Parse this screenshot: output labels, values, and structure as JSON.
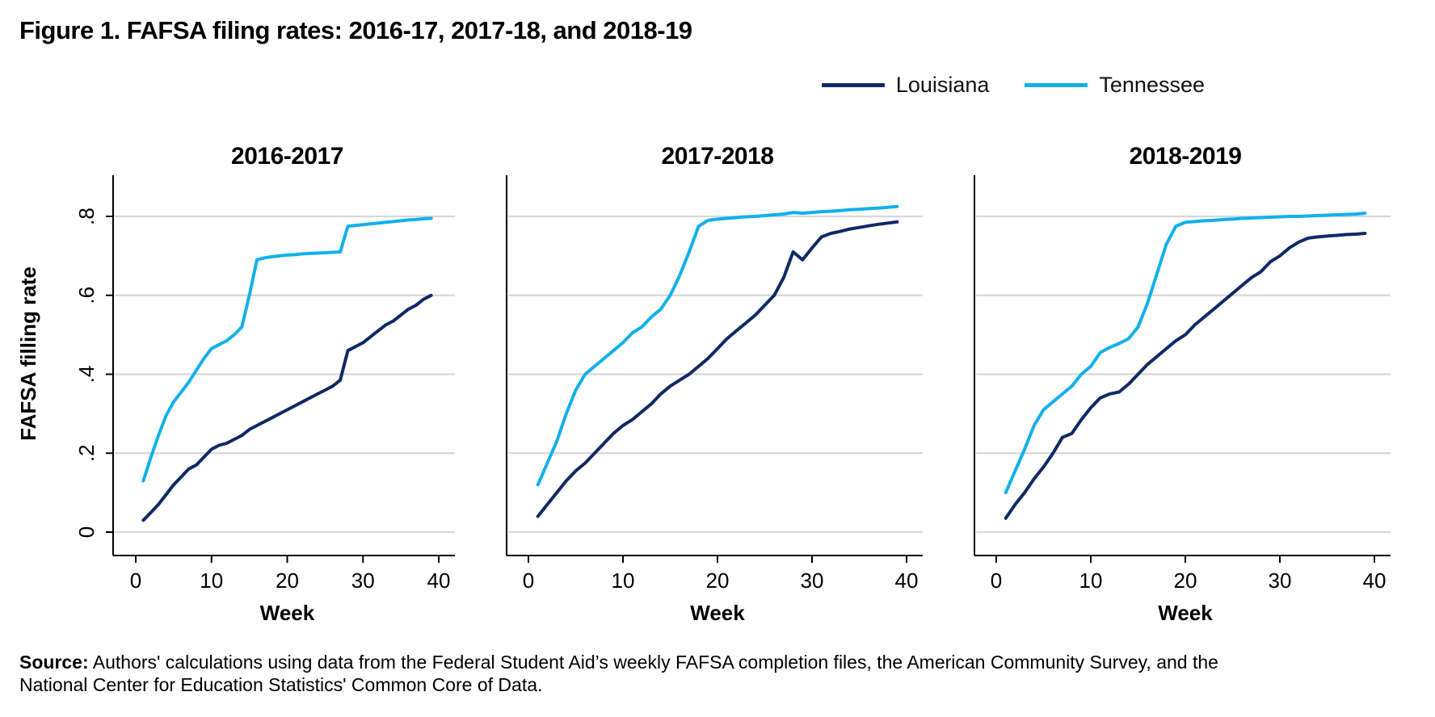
{
  "figure": {
    "title": "Figure 1. FAFSA filing rates: 2016-17, 2017-18, and 2018-19"
  },
  "legend": {
    "items": [
      {
        "label": "Louisiana",
        "color": "#0e2a63"
      },
      {
        "label": "Tennessee",
        "color": "#12b0e9"
      }
    ]
  },
  "colors": {
    "louisiana": "#0e2a63",
    "tennessee": "#12b0e9",
    "gridline": "#d7d7d7",
    "axis": "#000000"
  },
  "source": {
    "label": "Source:",
    "text": " Authors' calculations using data from the Federal Student Aid’s weekly FAFSA completion files, the American Community Survey, and the National Center for Education Statistics' Common Core of Data."
  },
  "chart_data": [
    {
      "type": "line",
      "title": "2016-2017",
      "xlabel": "Week",
      "ylabel": "FAFSA filling rate",
      "xticks": [
        0,
        10,
        20,
        30,
        40
      ],
      "yticks": [
        0,
        0.2,
        0.4,
        0.6,
        0.8
      ],
      "ytick_labels": [
        "0",
        ".2",
        ".4",
        ".6",
        ".8"
      ],
      "xlim": [
        -3,
        42
      ],
      "ylim": [
        0,
        0.9
      ],
      "grid": "horizontal",
      "x": [
        1,
        2,
        3,
        4,
        5,
        6,
        7,
        8,
        9,
        10,
        11,
        12,
        13,
        14,
        15,
        16,
        17,
        18,
        19,
        20,
        21,
        22,
        23,
        24,
        25,
        26,
        27,
        28,
        29,
        30,
        31,
        32,
        33,
        34,
        35,
        36,
        37,
        38,
        39
      ],
      "series": [
        {
          "name": "Louisiana",
          "values": [
            0.03,
            0.05,
            0.07,
            0.095,
            0.12,
            0.14,
            0.16,
            0.17,
            0.19,
            0.21,
            0.22,
            0.225,
            0.235,
            0.245,
            0.26,
            0.27,
            0.28,
            0.29,
            0.3,
            0.31,
            0.32,
            0.33,
            0.34,
            0.35,
            0.36,
            0.37,
            0.385,
            0.46,
            0.47,
            0.48,
            0.495,
            0.51,
            0.525,
            0.535,
            0.55,
            0.565,
            0.575,
            0.59,
            0.6
          ]
        },
        {
          "name": "Tennessee",
          "values": [
            0.13,
            0.19,
            0.245,
            0.295,
            0.33,
            0.355,
            0.38,
            0.41,
            0.44,
            0.465,
            0.475,
            0.485,
            0.5,
            0.52,
            0.6,
            0.69,
            0.695,
            0.698,
            0.7,
            0.702,
            0.703,
            0.705,
            0.706,
            0.707,
            0.708,
            0.709,
            0.71,
            0.775,
            0.777,
            0.779,
            0.781,
            0.783,
            0.785,
            0.787,
            0.789,
            0.791,
            0.792,
            0.794,
            0.795
          ]
        }
      ]
    },
    {
      "type": "line",
      "title": "2017-2018",
      "xlabel": "Week",
      "ylabel": "FAFSA filling rate",
      "xticks": [
        0,
        10,
        20,
        30,
        40
      ],
      "yticks": [
        0,
        0.2,
        0.4,
        0.6,
        0.8
      ],
      "ytick_labels": [
        "0",
        ".2",
        ".4",
        ".6",
        ".8"
      ],
      "xlim": [
        -3,
        42
      ],
      "ylim": [
        0,
        0.9
      ],
      "grid": "horizontal",
      "x": [
        1,
        2,
        3,
        4,
        5,
        6,
        7,
        8,
        9,
        10,
        11,
        12,
        13,
        14,
        15,
        16,
        17,
        18,
        19,
        20,
        21,
        22,
        23,
        24,
        25,
        26,
        27,
        28,
        29,
        30,
        31,
        32,
        33,
        34,
        35,
        36,
        37,
        38,
        39
      ],
      "series": [
        {
          "name": "Louisiana",
          "values": [
            0.04,
            0.07,
            0.1,
            0.13,
            0.155,
            0.175,
            0.2,
            0.225,
            0.25,
            0.27,
            0.285,
            0.305,
            0.325,
            0.35,
            0.37,
            0.385,
            0.4,
            0.42,
            0.44,
            0.465,
            0.49,
            0.51,
            0.53,
            0.55,
            0.575,
            0.6,
            0.645,
            0.71,
            0.69,
            0.72,
            0.748,
            0.757,
            0.762,
            0.768,
            0.772,
            0.776,
            0.78,
            0.783,
            0.786
          ]
        },
        {
          "name": "Tennessee",
          "values": [
            0.12,
            0.175,
            0.23,
            0.3,
            0.36,
            0.4,
            0.42,
            0.44,
            0.46,
            0.48,
            0.505,
            0.52,
            0.545,
            0.565,
            0.6,
            0.65,
            0.71,
            0.775,
            0.79,
            0.793,
            0.795,
            0.797,
            0.799,
            0.8,
            0.802,
            0.804,
            0.806,
            0.81,
            0.808,
            0.81,
            0.812,
            0.813,
            0.815,
            0.817,
            0.818,
            0.82,
            0.821,
            0.823,
            0.825
          ]
        }
      ]
    },
    {
      "type": "line",
      "title": "2018-2019",
      "xlabel": "Week",
      "ylabel": "FAFSA filling rate",
      "xticks": [
        0,
        10,
        20,
        30,
        40
      ],
      "yticks": [
        0,
        0.2,
        0.4,
        0.6,
        0.8
      ],
      "ytick_labels": [
        "0",
        ".2",
        ".4",
        ".6",
        ".8"
      ],
      "xlim": [
        -3,
        42
      ],
      "ylim": [
        0,
        0.9
      ],
      "grid": "horizontal",
      "x": [
        1,
        2,
        3,
        4,
        5,
        6,
        7,
        8,
        9,
        10,
        11,
        12,
        13,
        14,
        15,
        16,
        17,
        18,
        19,
        20,
        21,
        22,
        23,
        24,
        25,
        26,
        27,
        28,
        29,
        30,
        31,
        32,
        33,
        34,
        35,
        36,
        37,
        38,
        39
      ],
      "series": [
        {
          "name": "Louisiana",
          "values": [
            0.035,
            0.07,
            0.1,
            0.135,
            0.165,
            0.2,
            0.24,
            0.25,
            0.285,
            0.315,
            0.34,
            0.35,
            0.355,
            0.375,
            0.4,
            0.425,
            0.445,
            0.465,
            0.485,
            0.5,
            0.525,
            0.545,
            0.565,
            0.585,
            0.605,
            0.625,
            0.645,
            0.66,
            0.685,
            0.7,
            0.72,
            0.735,
            0.745,
            0.748,
            0.75,
            0.752,
            0.754,
            0.755,
            0.757
          ]
        },
        {
          "name": "Tennessee",
          "values": [
            0.1,
            0.155,
            0.21,
            0.27,
            0.31,
            0.33,
            0.35,
            0.37,
            0.4,
            0.42,
            0.455,
            0.468,
            0.478,
            0.49,
            0.52,
            0.58,
            0.655,
            0.73,
            0.775,
            0.785,
            0.787,
            0.789,
            0.79,
            0.792,
            0.793,
            0.795,
            0.796,
            0.797,
            0.798,
            0.799,
            0.8,
            0.8,
            0.801,
            0.802,
            0.803,
            0.804,
            0.805,
            0.806,
            0.808
          ]
        }
      ]
    }
  ]
}
